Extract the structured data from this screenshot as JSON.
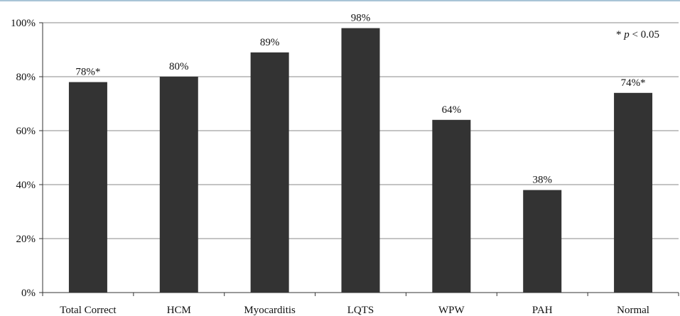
{
  "chart_data": {
    "type": "bar",
    "categories": [
      "Total Correct",
      "HCM",
      "Myocarditis",
      "LQTS",
      "WPW",
      "PAH",
      "Normal"
    ],
    "values": [
      78,
      80,
      89,
      98,
      64,
      38,
      74
    ],
    "data_labels": [
      "78%*",
      "80%",
      "89%",
      "98%",
      "64%",
      "38%",
      "74%*"
    ],
    "title": "",
    "xlabel": "",
    "ylabel": "",
    "ylim": [
      0,
      100
    ],
    "yticks": [
      0,
      20,
      40,
      60,
      80,
      100
    ],
    "ytick_labels": [
      "0%",
      "20%",
      "40%",
      "60%",
      "80%",
      "100%"
    ],
    "grid": true,
    "bar_color": "#333333",
    "annotation": {
      "prefix": "* ",
      "italic": "p",
      "suffix": " < 0.05"
    }
  }
}
